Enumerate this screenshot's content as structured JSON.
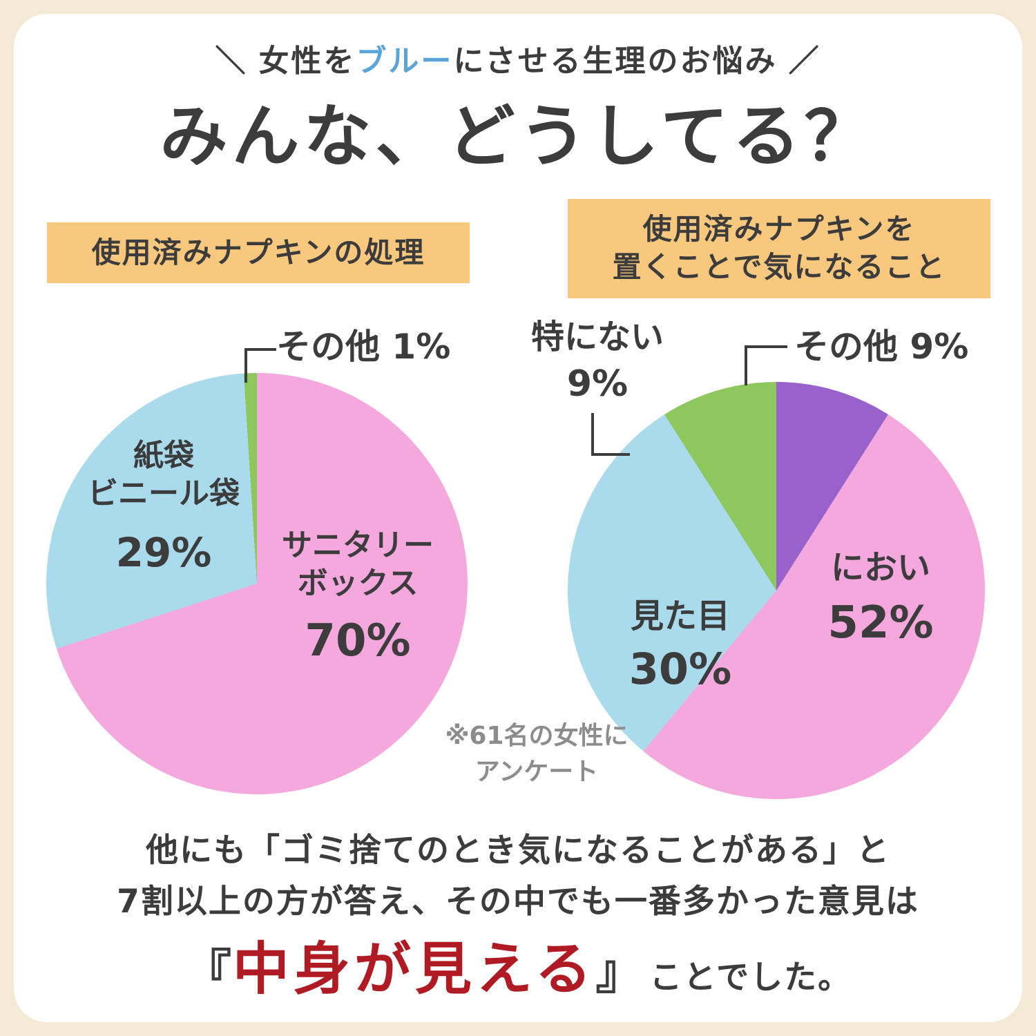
{
  "colors": {
    "background": "#f3e9d4",
    "card": "#ffffff",
    "text": "#3c3c3c",
    "accent_blue": "#5ba4d9",
    "chart_header_bg": "#f8c87e",
    "pink": "#f5a8de",
    "light_blue": "#a9dbec",
    "green": "#8fc75f",
    "purple": "#9861cb",
    "highlight_red": "#b01a23",
    "note_gray": "#8c8c8c"
  },
  "header": {
    "slash_left": "＼",
    "tagline_part1": "女性を",
    "tagline_blue": "ブルー",
    "tagline_part2": "にさせる生理のお悩み",
    "slash_right": "／",
    "title": "みんな、どうしてる？"
  },
  "chart1": {
    "header": "使用済みナプキンの処理",
    "callout_other": "その他 1%",
    "slice_paper_line1": "紙袋",
    "slice_paper_line2": "ビニール袋",
    "slice_paper_value": "29%",
    "slice_sanitary_line1": "サニタリー",
    "slice_sanitary_line2": "ボックス",
    "slice_sanitary_value": "70%"
  },
  "chart2": {
    "header_line1": "使用済みナプキンを",
    "header_line2": "置くことで気になること",
    "callout_none_label": "特にない",
    "callout_none_value": "9%",
    "callout_other": "その他 9%",
    "slice_smell_label": "におい",
    "slice_smell_value": "52%",
    "slice_look_label": "見た目",
    "slice_look_value": "30%"
  },
  "note": {
    "line1": "※61名の女性に",
    "line2": "アンケート"
  },
  "footer": {
    "line1": "他にも「ゴミ捨てのとき気になることがある」と",
    "line2": "7割以上の方が答え、その中でも一番多かった意見は",
    "line3_open_bracket": "『",
    "line3_highlight": "中身が見える",
    "line3_close_bracket": "』",
    "line3_rest": "ことでした。"
  },
  "chart_data": [
    {
      "type": "pie",
      "title": "使用済みナプキンの処理",
      "labels": [
        "サニタリーボックス",
        "紙袋・ビニール袋",
        "その他"
      ],
      "values": [
        70,
        29,
        1
      ],
      "unit": "%",
      "colors": [
        "#f5a8de",
        "#a9dbec",
        "#8fc75f"
      ],
      "start_angle": "top",
      "direction": "clockwise",
      "annotation": "※61名の女性にアンケート"
    },
    {
      "type": "pie",
      "title": "使用済みナプキンを置くことで気になること",
      "labels": [
        "その他",
        "におい",
        "見た目",
        "特にない"
      ],
      "values": [
        9,
        52,
        30,
        9
      ],
      "unit": "%",
      "colors": [
        "#9861cb",
        "#f5a8de",
        "#a9dbec",
        "#8fc75f"
      ],
      "start_angle": "top",
      "direction": "clockwise",
      "annotation": "※61名の女性にアンケート"
    }
  ]
}
